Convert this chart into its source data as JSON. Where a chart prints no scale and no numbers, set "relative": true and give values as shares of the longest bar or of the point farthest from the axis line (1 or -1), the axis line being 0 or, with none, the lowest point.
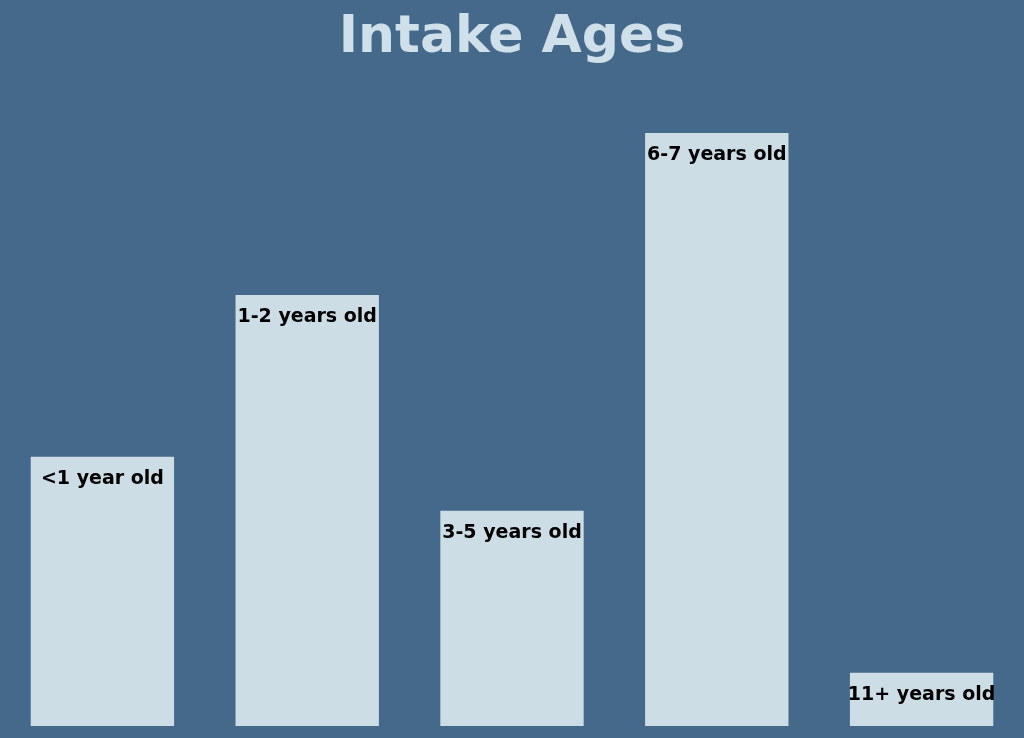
{
  "chart_data": {
    "type": "bar",
    "title": "Intake Ages",
    "relative": true,
    "categories": [
      "<1 year old",
      "1-2 years old",
      "3-5 years old",
      "6-7 years old",
      "11+ years old"
    ],
    "values": [
      0.454,
      0.727,
      0.363,
      1,
      0.09
    ],
    "color": "#cddde6"
  }
}
